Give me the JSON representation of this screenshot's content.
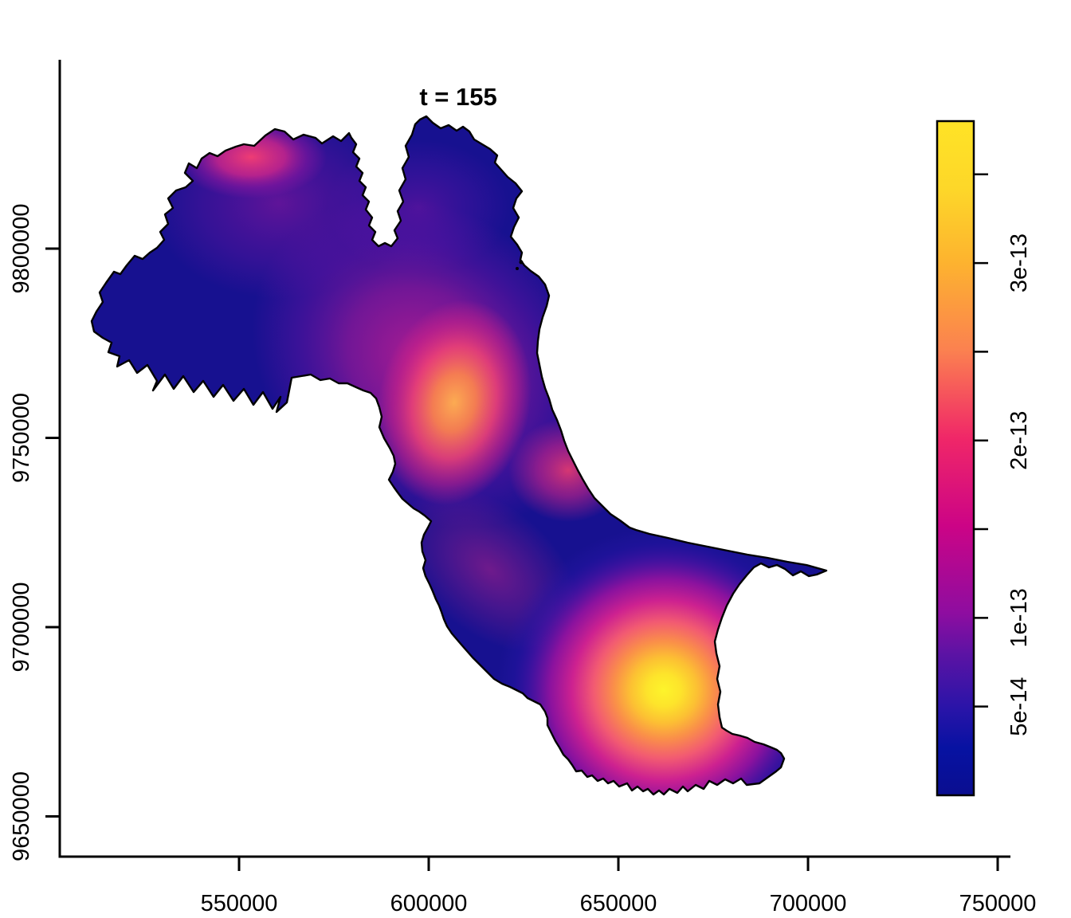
{
  "figure": {
    "title": "t = 155",
    "background_color": "#ffffff",
    "map_base_color": "#171190",
    "outline_color": "#000000"
  },
  "chart_data": {
    "type": "heatmap",
    "title": "t = 155",
    "x_axis": {
      "label": "",
      "ticks": [
        {
          "value": 550000,
          "label": "550000"
        },
        {
          "value": 600000,
          "label": "600000"
        },
        {
          "value": 650000,
          "label": "650000"
        },
        {
          "value": 700000,
          "label": "700000"
        },
        {
          "value": 750000,
          "label": "750000"
        }
      ]
    },
    "y_axis": {
      "label": "",
      "ticks": [
        {
          "value": 9650000,
          "label": "9650000"
        },
        {
          "value": 9700000,
          "label": "9700000"
        },
        {
          "value": 9750000,
          "label": "9750000"
        },
        {
          "value": 9800000,
          "label": "9800000"
        }
      ]
    },
    "colorbar": {
      "value_min": 0,
      "value_max": 3.8e-13,
      "ticks": [
        {
          "value": 5e-14,
          "label": "5e-14"
        },
        {
          "value": 1e-13,
          "label": "1e-13"
        },
        {
          "value": 1.5e-13,
          "label": ""
        },
        {
          "value": 2e-13,
          "label": "2e-13"
        },
        {
          "value": 2.5e-13,
          "label": ""
        },
        {
          "value": 3e-13,
          "label": "3e-13"
        },
        {
          "value": 3.5e-13,
          "label": ""
        }
      ],
      "gradient_stops": [
        {
          "offset": 0.0,
          "color": "#0a0e90"
        },
        {
          "offset": 0.07,
          "color": "#0712a2"
        },
        {
          "offset": 0.13,
          "color": "#2a14a8"
        },
        {
          "offset": 0.21,
          "color": "#5c13a4"
        },
        {
          "offset": 0.27,
          "color": "#8e0da0"
        },
        {
          "offset": 0.4,
          "color": "#cc0486"
        },
        {
          "offset": 0.53,
          "color": "#f02768"
        },
        {
          "offset": 0.66,
          "color": "#fb8150"
        },
        {
          "offset": 0.79,
          "color": "#fdb32f"
        },
        {
          "offset": 0.9,
          "color": "#fdd729"
        },
        {
          "offset": 1.0,
          "color": "#ffe326"
        }
      ]
    },
    "field": {
      "background_value": 2e-14,
      "hotspots": [
        {
          "name": "northwest-hotspot",
          "easting": 553000,
          "northing": 9824000,
          "peak_value": 2.2e-13
        },
        {
          "name": "north-lobe-patch",
          "easting": 596000,
          "northing": 9810000,
          "peak_value": 1.1e-13
        },
        {
          "name": "central-hotspot",
          "easting": 606000,
          "northing": 9757000,
          "peak_value": 2.9e-13
        },
        {
          "name": "east-coast-hotspot",
          "easting": 637000,
          "northing": 9741000,
          "peak_value": 2.1e-13
        },
        {
          "name": "southeast-maximum",
          "easting": 662000,
          "northing": 9683000,
          "peak_value": 3.8e-13
        }
      ]
    },
    "legend_position": "right",
    "grid": false
  }
}
